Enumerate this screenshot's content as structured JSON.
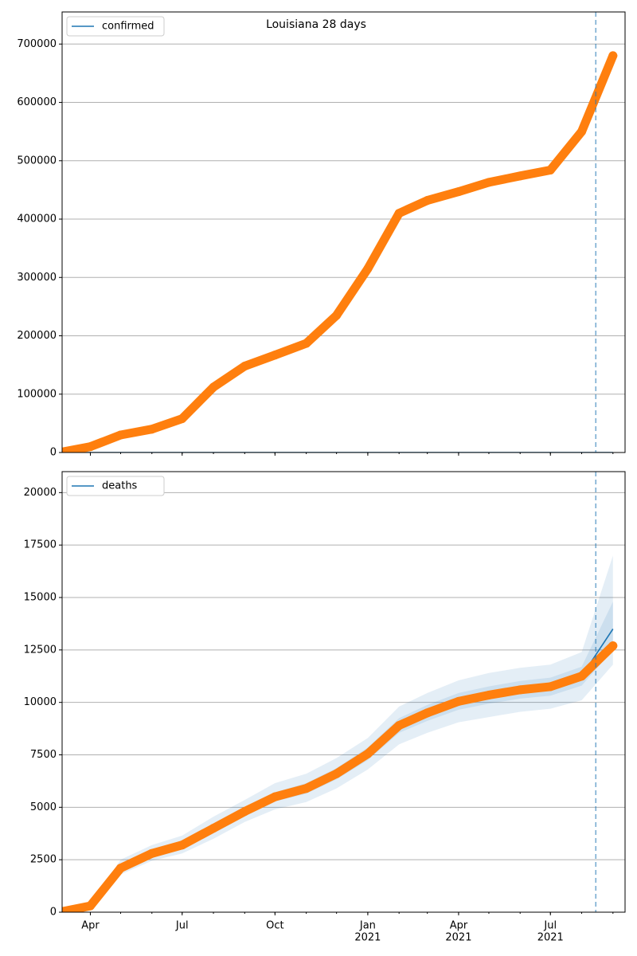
{
  "chart_data": [
    {
      "type": "line",
      "title": "Louisiana 28 days",
      "x": [
        "2020-03",
        "2020-04",
        "2020-05",
        "2020-06",
        "2020-07",
        "2020-08",
        "2020-09",
        "2020-10",
        "2020-11",
        "2020-12",
        "2021-01",
        "2021-02",
        "2021-03",
        "2021-04",
        "2021-05",
        "2021-06",
        "2021-07",
        "2021-08",
        "2021-09"
      ],
      "series": [
        {
          "name": "confirmed",
          "color": "#1f77b4",
          "values": [
            0,
            0,
            0,
            0,
            0,
            0,
            0,
            0,
            0,
            0,
            0,
            0,
            0,
            0,
            0,
            0,
            0,
            0,
            0
          ]
        },
        {
          "color": "#ff7f0e",
          "style": "dots",
          "values": [
            0,
            10000,
            30000,
            40000,
            58000,
            112000,
            148000,
            167000,
            187000,
            235000,
            315000,
            410000,
            432000,
            447000,
            463000,
            474000,
            484000,
            550000,
            680000
          ]
        }
      ],
      "xlim": [
        "2020-03-04",
        "2021-09-13"
      ],
      "xticks": [
        "2020-04",
        "2020-07",
        "2020-10",
        "2021-01",
        "2021-04",
        "2021-07"
      ],
      "ylim": [
        0,
        755000
      ],
      "yticks": [
        0,
        100000,
        200000,
        300000,
        400000,
        500000,
        600000,
        700000
      ],
      "grid": true,
      "legend": "upper left",
      "vline": "2021-08-15"
    },
    {
      "type": "line",
      "x": [
        "2020-03",
        "2020-04",
        "2020-05",
        "2020-06",
        "2020-07",
        "2020-08",
        "2020-09",
        "2020-10",
        "2020-11",
        "2020-12",
        "2021-01",
        "2021-02",
        "2021-03",
        "2021-04",
        "2021-05",
        "2021-06",
        "2021-07",
        "2021-08",
        "2021-09"
      ],
      "bands": [
        {
          "color": "#1f77b4",
          "lower": [
            0,
            250,
            1800,
            2450,
            2800,
            3500,
            4300,
            4900,
            5250,
            5900,
            6800,
            8000,
            8550,
            9050,
            9300,
            9550,
            9700,
            10100,
            11800
          ],
          "upper": [
            0,
            360,
            2500,
            3200,
            3650,
            4550,
            5350,
            6150,
            6600,
            7350,
            8300,
            9800,
            10450,
            11050,
            11400,
            11650,
            11800,
            12400,
            17000
          ]
        },
        {
          "color": "#1f77b4",
          "lower": [
            0,
            280,
            1950,
            2650,
            3050,
            3800,
            4600,
            5280,
            5650,
            6330,
            7250,
            8550,
            9120,
            9650,
            9940,
            10180,
            10320,
            10800,
            12500
          ],
          "upper": [
            0,
            320,
            2250,
            2950,
            3350,
            4200,
            5000,
            5720,
            6150,
            6870,
            7850,
            9250,
            9880,
            10450,
            10760,
            11020,
            11180,
            11700,
            14800
          ]
        }
      ],
      "series": [
        {
          "name": "deaths",
          "color": "#1f77b4",
          "values": [
            0,
            300,
            2100,
            2800,
            3200,
            4000,
            4800,
            5500,
            5900,
            6600,
            7550,
            8900,
            9500,
            10050,
            10350,
            10600,
            10750,
            11250,
            13500
          ]
        },
        {
          "color": "#ff7f0e",
          "style": "dots",
          "values": [
            0,
            300,
            2100,
            2800,
            3200,
            4000,
            4800,
            5500,
            5900,
            6600,
            7550,
            8900,
            9500,
            10050,
            10350,
            10600,
            10750,
            11250,
            12700
          ]
        }
      ],
      "xlim": [
        "2020-03-04",
        "2021-09-13"
      ],
      "xticks": [
        {
          "value": "2020-04",
          "label": "Apr"
        },
        {
          "value": "2020-07",
          "label": "Jul"
        },
        {
          "value": "2020-10",
          "label": "Oct"
        },
        {
          "value": "2021-01",
          "label": "Jan"
        },
        {
          "value": "2021-04",
          "label": "Apr"
        },
        {
          "value": "2021-07",
          "label": "Jul"
        }
      ],
      "year_label": "2021",
      "ylim": [
        0,
        21000
      ],
      "yticks": [
        0,
        2500,
        5000,
        7500,
        10000,
        12500,
        15000,
        17500,
        20000
      ],
      "grid": true,
      "legend": "upper left",
      "vline": "2021-08-15"
    }
  ]
}
